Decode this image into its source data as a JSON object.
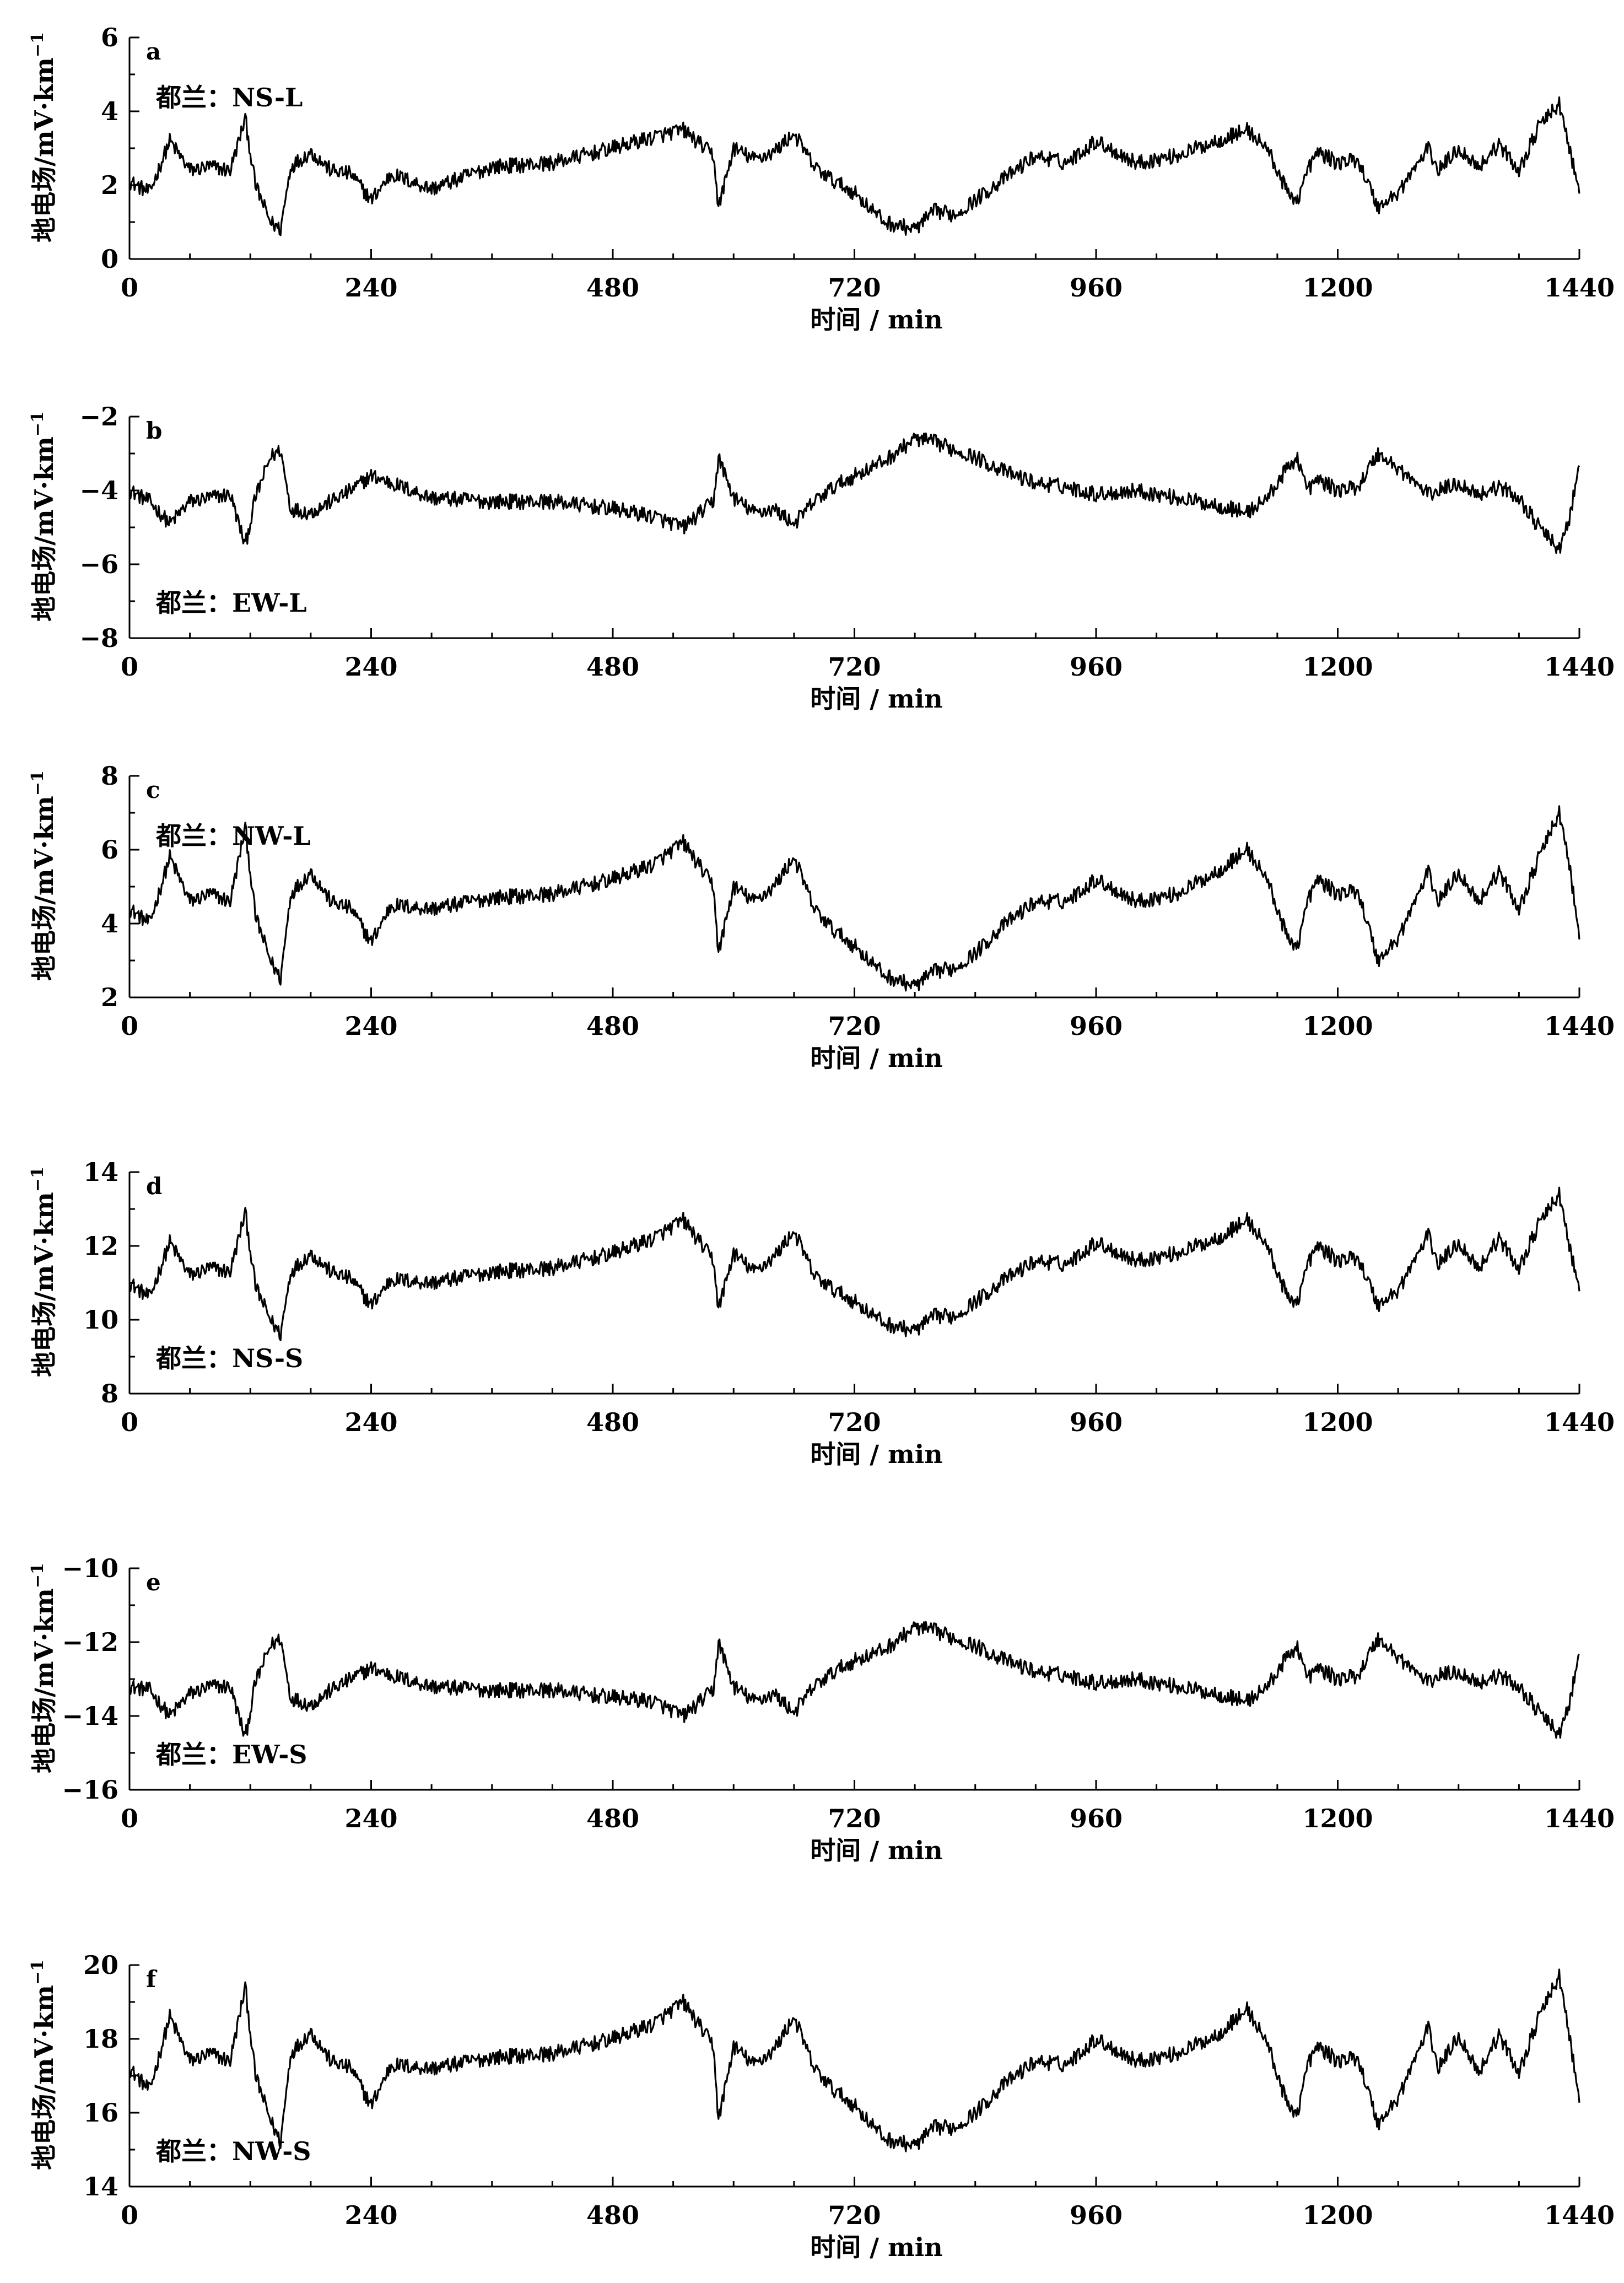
{
  "chart_data": [
    {
      "type": "line",
      "panel_label": "a",
      "station_label": "都兰：NS-L",
      "xlabel": "时间 / min",
      "ylabel": "地电场/mV·km",
      "ylabel_sup": "−1",
      "xlim": [
        0,
        1440
      ],
      "ylim": [
        0,
        6
      ],
      "xticks": [
        0,
        240,
        480,
        720,
        960,
        1200,
        1440
      ],
      "yticks": [
        0,
        2,
        4,
        6
      ],
      "tick_labels_y": [
        "0",
        "2",
        "4",
        "6"
      ],
      "label_position": "top-left",
      "series": [
        {
          "x": [
            0,
            20,
            40,
            60,
            80,
            100,
            115,
            125,
            140,
            150,
            160,
            180,
            200,
            220,
            240,
            260,
            300,
            360,
            420,
            480,
            520,
            550,
            580,
            585,
            600,
            620,
            640,
            660,
            680,
            700,
            720,
            750,
            780,
            800,
            820,
            840,
            870,
            900,
            930,
            960,
            1000,
            1040,
            1080,
            1110,
            1130,
            1150,
            1160,
            1170,
            1180,
            1200,
            1220,
            1240,
            1260,
            1290,
            1300,
            1320,
            1340,
            1360,
            1380,
            1400,
            1420,
            1430,
            1440
          ],
          "y": [
            2.1,
            1.8,
            3.2,
            2.4,
            2.5,
            2.4,
            3.8,
            2.0,
            1.0,
            0.8,
            2.5,
            2.9,
            2.4,
            2.3,
            1.6,
            2.3,
            1.9,
            2.5,
            2.6,
            3.0,
            3.3,
            3.5,
            2.8,
            1.4,
            3.0,
            2.7,
            2.9,
            3.4,
            2.5,
            2.1,
            1.8,
            1.0,
            0.8,
            1.3,
            1.2,
            1.6,
            2.2,
            2.8,
            2.6,
            3.2,
            2.6,
            2.8,
            3.2,
            3.5,
            3.0,
            1.8,
            1.6,
            2.4,
            2.9,
            2.6,
            2.7,
            1.4,
            1.8,
            3.0,
            2.4,
            3.0,
            2.5,
            3.1,
            2.4,
            3.6,
            4.2,
            3.0,
            1.8
          ]
        }
      ]
    },
    {
      "type": "line",
      "panel_label": "b",
      "station_label": "都兰：EW-L",
      "xlabel": "时间 / min",
      "ylabel": "地电场/mV·km",
      "ylabel_sup": "−1",
      "xlim": [
        0,
        1440
      ],
      "ylim": [
        -8,
        -2
      ],
      "xticks": [
        0,
        240,
        480,
        720,
        960,
        1200,
        1440
      ],
      "yticks": [
        -8,
        -6,
        -4,
        -2
      ],
      "tick_labels_y": [
        "−8",
        "−6",
        "−4",
        "−2"
      ],
      "label_position": "bottom-left",
      "series": [
        {
          "x": [
            0,
            20,
            40,
            60,
            80,
            100,
            115,
            125,
            140,
            150,
            160,
            180,
            200,
            220,
            240,
            260,
            300,
            360,
            420,
            480,
            520,
            550,
            580,
            585,
            600,
            620,
            640,
            660,
            680,
            700,
            720,
            750,
            780,
            800,
            820,
            840,
            870,
            900,
            930,
            960,
            1000,
            1040,
            1080,
            1110,
            1130,
            1150,
            1160,
            1170,
            1180,
            1200,
            1220,
            1240,
            1260,
            1290,
            1300,
            1320,
            1340,
            1360,
            1380,
            1400,
            1420,
            1430,
            1440
          ],
          "y": [
            -4.0,
            -4.3,
            -4.9,
            -4.3,
            -4.2,
            -4.1,
            -5.5,
            -4.2,
            -3.1,
            -2.9,
            -4.5,
            -4.6,
            -4.3,
            -4.0,
            -3.6,
            -3.8,
            -4.2,
            -4.3,
            -4.3,
            -4.5,
            -4.7,
            -5.0,
            -4.3,
            -3.1,
            -4.2,
            -4.6,
            -4.5,
            -4.9,
            -4.3,
            -3.9,
            -3.6,
            -3.2,
            -2.6,
            -2.7,
            -2.9,
            -3.1,
            -3.5,
            -3.8,
            -3.9,
            -4.1,
            -4.0,
            -4.2,
            -4.4,
            -4.6,
            -4.2,
            -3.4,
            -3.1,
            -4.0,
            -3.7,
            -4.0,
            -3.9,
            -3.0,
            -3.4,
            -4.1,
            -4.0,
            -3.8,
            -4.1,
            -3.9,
            -4.2,
            -5.0,
            -5.6,
            -4.8,
            -3.3
          ]
        }
      ]
    },
    {
      "type": "line",
      "panel_label": "c",
      "station_label": "都兰：NW-L",
      "xlabel": "时间 / min",
      "ylabel": "地电场/mV·km",
      "ylabel_sup": "−1",
      "xlim": [
        0,
        1440
      ],
      "ylim": [
        2,
        8
      ],
      "xticks": [
        0,
        240,
        480,
        720,
        960,
        1200,
        1440
      ],
      "yticks": [
        2,
        4,
        6,
        8
      ],
      "tick_labels_y": [
        "2",
        "4",
        "6",
        "8"
      ],
      "label_position": "top-left",
      "series": [
        {
          "x": [
            0,
            20,
            40,
            60,
            80,
            100,
            115,
            125,
            140,
            150,
            160,
            180,
            200,
            220,
            240,
            260,
            300,
            360,
            420,
            480,
            520,
            550,
            580,
            585,
            600,
            620,
            640,
            660,
            680,
            700,
            720,
            750,
            780,
            800,
            820,
            840,
            870,
            900,
            930,
            960,
            1000,
            1040,
            1080,
            1110,
            1130,
            1150,
            1160,
            1170,
            1180,
            1200,
            1220,
            1240,
            1260,
            1290,
            1300,
            1320,
            1340,
            1360,
            1380,
            1400,
            1420,
            1430,
            1440
          ],
          "y": [
            4.4,
            4.0,
            5.8,
            4.6,
            4.8,
            4.6,
            6.6,
            4.2,
            3.0,
            2.5,
            4.8,
            5.4,
            4.6,
            4.4,
            3.5,
            4.5,
            4.4,
            4.7,
            4.8,
            5.2,
            5.6,
            6.2,
            5.0,
            3.2,
            5.0,
            4.6,
            5.0,
            5.8,
            4.4,
            3.8,
            3.4,
            2.6,
            2.3,
            2.7,
            2.8,
            3.2,
            4.0,
            4.6,
            4.6,
            5.2,
            4.6,
            4.8,
            5.4,
            6.0,
            5.2,
            3.6,
            3.4,
            4.6,
            5.2,
            4.8,
            4.9,
            3.0,
            3.6,
            5.4,
            4.6,
            5.4,
            4.6,
            5.4,
            4.4,
            5.8,
            7.0,
            5.6,
            3.6
          ]
        }
      ]
    },
    {
      "type": "line",
      "panel_label": "d",
      "station_label": "都兰：NS-S",
      "xlabel": "时间 / min",
      "ylabel": "地电场/mV·km",
      "ylabel_sup": "−1",
      "xlim": [
        0,
        1440
      ],
      "ylim": [
        8,
        14
      ],
      "xticks": [
        0,
        240,
        480,
        720,
        960,
        1200,
        1440
      ],
      "yticks": [
        8,
        10,
        12,
        14
      ],
      "tick_labels_y": [
        "8",
        "10",
        "12",
        "14"
      ],
      "label_position": "bottom-left",
      "series": [
        {
          "x": [
            0,
            20,
            40,
            60,
            80,
            100,
            115,
            125,
            140,
            150,
            160,
            180,
            200,
            220,
            240,
            260,
            300,
            360,
            420,
            480,
            520,
            550,
            580,
            585,
            600,
            620,
            640,
            660,
            680,
            700,
            720,
            750,
            780,
            800,
            820,
            840,
            870,
            900,
            930,
            960,
            1000,
            1040,
            1080,
            1110,
            1130,
            1150,
            1160,
            1170,
            1180,
            1200,
            1220,
            1240,
            1260,
            1290,
            1300,
            1320,
            1340,
            1360,
            1380,
            1400,
            1420,
            1430,
            1440
          ],
          "y": [
            11.0,
            10.6,
            12.1,
            11.2,
            11.4,
            11.3,
            12.9,
            10.9,
            10.0,
            9.6,
            11.3,
            11.8,
            11.3,
            11.1,
            10.4,
            11.1,
            11.0,
            11.3,
            11.4,
            11.8,
            12.2,
            12.7,
            11.6,
            10.3,
            11.8,
            11.3,
            11.7,
            12.4,
            11.2,
            10.8,
            10.5,
            9.9,
            9.7,
            10.1,
            10.1,
            10.5,
            11.1,
            11.6,
            11.5,
            12.1,
            11.6,
            11.8,
            12.2,
            12.7,
            12.0,
            10.6,
            10.5,
            11.5,
            12.0,
            11.6,
            11.7,
            10.4,
            10.8,
            12.3,
            11.5,
            12.1,
            11.4,
            12.2,
            11.4,
            12.6,
            13.4,
            12.0,
            10.8
          ]
        }
      ]
    },
    {
      "type": "line",
      "panel_label": "e",
      "station_label": "都兰：EW-S",
      "xlabel": "时间 / min",
      "ylabel": "地电场/mV·km",
      "ylabel_sup": "−1",
      "xlim": [
        0,
        1440
      ],
      "ylim": [
        -16,
        -10
      ],
      "xticks": [
        0,
        240,
        480,
        720,
        960,
        1200,
        1440
      ],
      "yticks": [
        -16,
        -14,
        -12,
        -10
      ],
      "tick_labels_y": [
        "−16",
        "−14",
        "−12",
        "−10"
      ],
      "label_position": "bottom-left",
      "series": [
        {
          "x": [
            0,
            20,
            40,
            60,
            80,
            100,
            115,
            125,
            140,
            150,
            160,
            180,
            200,
            220,
            240,
            260,
            300,
            360,
            420,
            480,
            520,
            550,
            580,
            585,
            600,
            620,
            640,
            660,
            680,
            700,
            720,
            750,
            780,
            800,
            820,
            840,
            870,
            900,
            930,
            960,
            1000,
            1040,
            1080,
            1110,
            1130,
            1150,
            1160,
            1170,
            1180,
            1200,
            1220,
            1240,
            1260,
            1290,
            1300,
            1320,
            1340,
            1360,
            1380,
            1400,
            1420,
            1430,
            1440
          ],
          "y": [
            -13.2,
            -13.3,
            -14.0,
            -13.4,
            -13.2,
            -13.2,
            -14.6,
            -13.1,
            -12.1,
            -11.9,
            -13.5,
            -13.7,
            -13.3,
            -13.0,
            -12.7,
            -12.9,
            -13.2,
            -13.3,
            -13.3,
            -13.5,
            -13.6,
            -14.0,
            -13.3,
            -12.0,
            -13.2,
            -13.6,
            -13.4,
            -13.9,
            -13.2,
            -12.8,
            -12.5,
            -12.2,
            -11.6,
            -11.7,
            -11.9,
            -12.1,
            -12.5,
            -12.8,
            -12.9,
            -13.1,
            -13.0,
            -13.2,
            -13.4,
            -13.6,
            -13.2,
            -12.4,
            -12.1,
            -13.0,
            -12.7,
            -13.0,
            -12.9,
            -11.9,
            -12.4,
            -13.1,
            -12.9,
            -12.8,
            -13.1,
            -12.9,
            -13.2,
            -13.9,
            -14.5,
            -13.7,
            -12.3
          ]
        }
      ]
    },
    {
      "type": "line",
      "panel_label": "f",
      "station_label": "都兰：NW-S",
      "xlabel": "时间 / min",
      "ylabel": "地电场/mV·km",
      "ylabel_sup": "−1",
      "xlim": [
        0,
        1440
      ],
      "ylim": [
        14,
        20
      ],
      "xticks": [
        0,
        240,
        480,
        720,
        960,
        1200,
        1440
      ],
      "yticks": [
        14,
        16,
        18,
        20
      ],
      "tick_labels_y": [
        "14",
        "16",
        "18",
        "20"
      ],
      "label_position": "bottom-left",
      "series": [
        {
          "x": [
            0,
            20,
            40,
            60,
            80,
            100,
            115,
            125,
            140,
            150,
            160,
            180,
            200,
            220,
            240,
            260,
            300,
            360,
            420,
            480,
            520,
            550,
            580,
            585,
            600,
            620,
            640,
            660,
            680,
            700,
            720,
            750,
            780,
            800,
            820,
            840,
            870,
            900,
            930,
            960,
            1000,
            1040,
            1080,
            1110,
            1130,
            1150,
            1160,
            1170,
            1180,
            1200,
            1220,
            1240,
            1260,
            1290,
            1300,
            1320,
            1340,
            1360,
            1380,
            1400,
            1420,
            1430,
            1440
          ],
          "y": [
            17.2,
            16.6,
            18.6,
            17.4,
            17.6,
            17.4,
            19.4,
            17.0,
            15.8,
            15.2,
            17.6,
            18.2,
            17.4,
            17.2,
            16.2,
            17.3,
            17.2,
            17.5,
            17.6,
            18.0,
            18.4,
            19.0,
            17.8,
            15.8,
            17.8,
            17.3,
            17.7,
            18.6,
            17.2,
            16.6,
            16.2,
            15.3,
            15.1,
            15.6,
            15.6,
            16.0,
            16.8,
            17.4,
            17.3,
            18.0,
            17.4,
            17.6,
            18.1,
            18.8,
            17.9,
            16.2,
            16.0,
            17.3,
            17.8,
            17.4,
            17.5,
            15.7,
            16.4,
            18.3,
            17.2,
            18.1,
            17.1,
            18.1,
            17.1,
            18.6,
            19.7,
            18.1,
            16.3
          ]
        }
      ]
    }
  ]
}
